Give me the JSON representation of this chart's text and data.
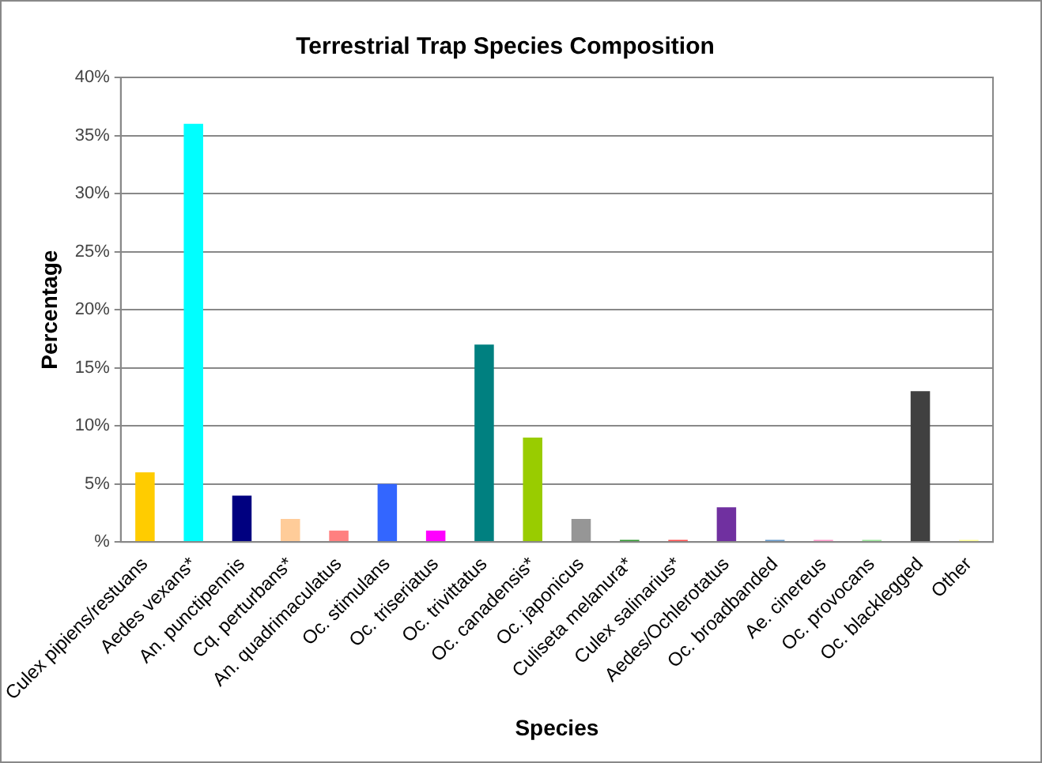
{
  "chart_data": {
    "type": "bar",
    "title": "Terrestrial Trap Species Composition",
    "xlabel": "Species",
    "ylabel": "Percentage",
    "categories": [
      "Culex pipiens/restuans",
      "Aedes vexans*",
      "An. punctipennis",
      "Cq. perturbans*",
      "An. quadrimaculatus",
      "Oc. stimulans",
      "Oc. triseriatus",
      "Oc. trivittatus",
      "Oc. canadensis*",
      "Oc. japonicus",
      "Culiseta melanura*",
      "Culex salinarius*",
      "Aedes/Ochlerotatus",
      "Oc. broadbanded",
      "Ae. cinereus",
      "Oc. provocans",
      "Oc. blacklegged",
      "Other"
    ],
    "values": [
      6,
      36,
      4,
      2,
      1,
      5,
      1,
      17,
      9,
      2,
      0.2,
      0.2,
      3,
      0.2,
      0.2,
      0.2,
      13,
      0.2
    ],
    "colors": [
      "#ffcc00",
      "#00ffff",
      "#000080",
      "#ffcc99",
      "#ff8080",
      "#3366ff",
      "#ff00ff",
      "#008080",
      "#99cc00",
      "#969696",
      "#339933",
      "#ff5050",
      "#7030a0",
      "#6699cc",
      "#ff99cc",
      "#99e699",
      "#404040",
      "#ffff99"
    ],
    "ylim": [
      0,
      40
    ],
    "yticks": [
      {
        "value": 0,
        "label": "%"
      },
      {
        "value": 5,
        "label": "5%"
      },
      {
        "value": 10,
        "label": "10%"
      },
      {
        "value": 15,
        "label": "15%"
      },
      {
        "value": 20,
        "label": "20%"
      },
      {
        "value": 25,
        "label": "25%"
      },
      {
        "value": 30,
        "label": "30%"
      },
      {
        "value": 35,
        "label": "35%"
      },
      {
        "value": 40,
        "label": "40%"
      }
    ],
    "grid": "y",
    "legend": false
  }
}
